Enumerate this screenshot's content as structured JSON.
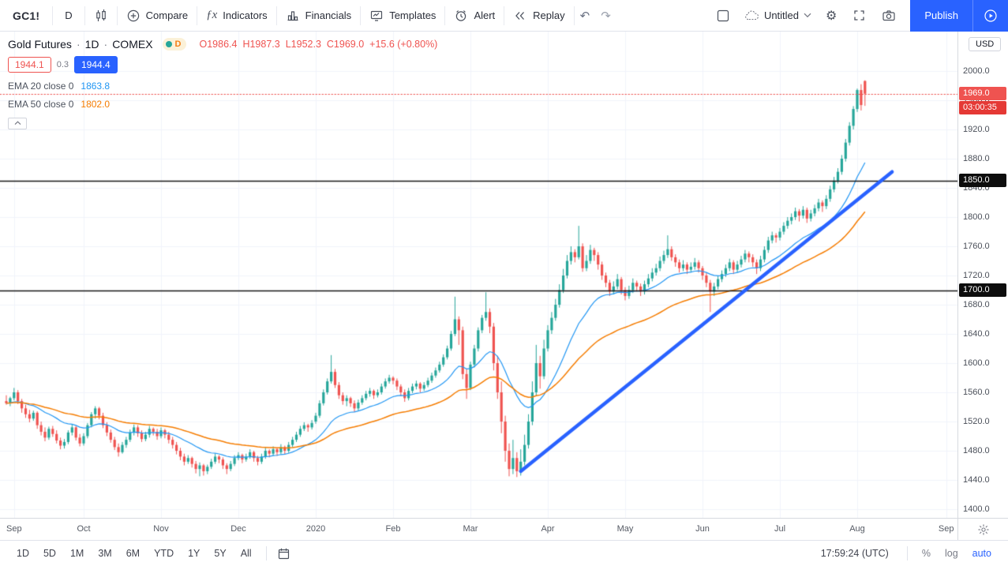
{
  "topbar": {
    "symbol": "GC1!",
    "interval": "D",
    "compare_label": "Compare",
    "indicators_label": "Indicators",
    "financials_label": "Financials",
    "templates_label": "Templates",
    "alert_label": "Alert",
    "replay_label": "Replay",
    "layout_name": "Untitled",
    "publish_label": "Publish"
  },
  "legend": {
    "title": "Gold Futures",
    "sep": "·",
    "interval": "1D",
    "exchange": "COMEX",
    "delay_badge": "D",
    "ohlc": {
      "o": "O1986.4",
      "h": "H1987.3",
      "l": "L1952.3",
      "c": "C1969.0",
      "change": "+15.6 (+0.80%)"
    },
    "bid": "1944.1",
    "spread": "0.3",
    "ask": "1944.4",
    "ema20_label": "EMA 20 close 0",
    "ema20_value": "1863.8",
    "ema50_label": "EMA 50 close 0",
    "ema50_value": "1802.0",
    "collapse_glyph": "⌃"
  },
  "axis": {
    "currency": "USD",
    "last_price": "1969.0",
    "countdown": "03:00:35",
    "upper_level": "1850.0",
    "lower_level": "1700.0"
  },
  "bottom_bar": {
    "ranges": [
      "1D",
      "5D",
      "1M",
      "3M",
      "6M",
      "YTD",
      "1Y",
      "5Y",
      "All"
    ],
    "clock": "17:59:24 (UTC)",
    "percent": "%",
    "log": "log",
    "auto": "auto"
  },
  "colors": {
    "up": "#26a69a",
    "down": "#ef5350",
    "ema20": "#2196f3",
    "ema50": "#f57c00",
    "trendline": "#2962ff",
    "level_line": "#161616",
    "grid": "#f0f3fa",
    "accent": "#2962ff"
  },
  "chart_data": {
    "type": "candlestick",
    "title": "Gold Futures",
    "symbol": "GC1!",
    "interval": "1D",
    "exchange": "COMEX",
    "currency": "USD",
    "ylim": [
      1400,
      2000
    ],
    "y_ticks": [
      2000,
      1960,
      1920,
      1880,
      1840,
      1800,
      1760,
      1720,
      1680,
      1640,
      1600,
      1560,
      1520,
      1480,
      1440,
      1400
    ],
    "x_ticks": [
      {
        "label": "Sep",
        "index": 2
      },
      {
        "label": "Oct",
        "index": 20
      },
      {
        "label": "Nov",
        "index": 40
      },
      {
        "label": "Dec",
        "index": 60
      },
      {
        "label": "2020",
        "index": 80
      },
      {
        "label": "Feb",
        "index": 100
      },
      {
        "label": "Mar",
        "index": 120
      },
      {
        "label": "Apr",
        "index": 140
      },
      {
        "label": "May",
        "index": 160
      },
      {
        "label": "Jun",
        "index": 180
      },
      {
        "label": "Jul",
        "index": 200
      },
      {
        "label": "Aug",
        "index": 220
      },
      {
        "label": "Sep",
        "index": 243
      }
    ],
    "last_ohlc": {
      "open": 1986.4,
      "high": 1987.3,
      "low": 1952.3,
      "close": 1969.0,
      "change": 15.6,
      "change_pct": 0.8
    },
    "last_price": 1969.0,
    "countdown": "03:00:35",
    "horizontal_lines": [
      1850,
      1700
    ],
    "trendline": {
      "from": {
        "index": 133,
        "price": 1452
      },
      "to": {
        "index": 229,
        "price": 1862
      }
    },
    "emas": [
      {
        "period": 20,
        "last": 1863.8
      },
      {
        "period": 50,
        "last": 1802.0
      }
    ],
    "candles": [
      [
        1548,
        1556,
        1543,
        1545
      ],
      [
        1545,
        1554,
        1541,
        1552
      ],
      [
        1552,
        1566,
        1549,
        1560
      ],
      [
        1560,
        1563,
        1544,
        1548
      ],
      [
        1548,
        1551,
        1532,
        1538
      ],
      [
        1538,
        1543,
        1525,
        1530
      ],
      [
        1530,
        1536,
        1519,
        1524
      ],
      [
        1524,
        1535,
        1521,
        1532
      ],
      [
        1532,
        1534,
        1510,
        1515
      ],
      [
        1515,
        1520,
        1501,
        1506
      ],
      [
        1506,
        1512,
        1493,
        1498
      ],
      [
        1498,
        1513,
        1495,
        1510
      ],
      [
        1510,
        1514,
        1499,
        1503
      ],
      [
        1503,
        1508,
        1490,
        1494
      ],
      [
        1494,
        1498,
        1482,
        1487
      ],
      [
        1487,
        1496,
        1483,
        1492
      ],
      [
        1492,
        1508,
        1489,
        1505
      ],
      [
        1505,
        1516,
        1501,
        1512
      ],
      [
        1512,
        1514,
        1494,
        1498
      ],
      [
        1498,
        1503,
        1486,
        1490
      ],
      [
        1490,
        1504,
        1487,
        1500
      ],
      [
        1500,
        1518,
        1497,
        1515
      ],
      [
        1515,
        1533,
        1512,
        1530
      ],
      [
        1530,
        1541,
        1524,
        1538
      ],
      [
        1538,
        1540,
        1523,
        1528
      ],
      [
        1528,
        1532,
        1511,
        1515
      ],
      [
        1515,
        1519,
        1500,
        1505
      ],
      [
        1505,
        1509,
        1491,
        1495
      ],
      [
        1495,
        1499,
        1481,
        1485
      ],
      [
        1485,
        1490,
        1472,
        1478
      ],
      [
        1478,
        1492,
        1476,
        1488
      ],
      [
        1488,
        1499,
        1484,
        1495
      ],
      [
        1495,
        1509,
        1492,
        1505
      ],
      [
        1505,
        1516,
        1501,
        1512
      ],
      [
        1512,
        1515,
        1499,
        1504
      ],
      [
        1504,
        1508,
        1492,
        1496
      ],
      [
        1496,
        1506,
        1493,
        1502
      ],
      [
        1502,
        1514,
        1498,
        1510
      ],
      [
        1510,
        1512,
        1501,
        1506
      ],
      [
        1506,
        1510,
        1495,
        1500
      ],
      [
        1500,
        1512,
        1497,
        1508
      ],
      [
        1508,
        1510,
        1497,
        1502
      ],
      [
        1502,
        1506,
        1490,
        1495
      ],
      [
        1495,
        1499,
        1483,
        1488
      ],
      [
        1488,
        1492,
        1475,
        1480
      ],
      [
        1480,
        1484,
        1467,
        1472
      ],
      [
        1472,
        1476,
        1460,
        1465
      ],
      [
        1465,
        1474,
        1462,
        1470
      ],
      [
        1470,
        1472,
        1457,
        1462
      ],
      [
        1462,
        1466,
        1449,
        1455
      ],
      [
        1455,
        1464,
        1445,
        1460
      ],
      [
        1460,
        1462,
        1446,
        1452
      ],
      [
        1452,
        1461,
        1448,
        1458
      ],
      [
        1458,
        1469,
        1455,
        1465
      ],
      [
        1465,
        1476,
        1462,
        1472
      ],
      [
        1472,
        1474,
        1463,
        1468
      ],
      [
        1468,
        1471,
        1455,
        1460
      ],
      [
        1460,
        1463,
        1448,
        1455
      ],
      [
        1455,
        1466,
        1452,
        1462
      ],
      [
        1462,
        1474,
        1459,
        1470
      ],
      [
        1470,
        1478,
        1467,
        1474
      ],
      [
        1474,
        1476,
        1463,
        1468
      ],
      [
        1468,
        1476,
        1465,
        1472
      ],
      [
        1472,
        1482,
        1469,
        1478
      ],
      [
        1478,
        1480,
        1465,
        1470
      ],
      [
        1470,
        1473,
        1460,
        1465
      ],
      [
        1465,
        1476,
        1462,
        1472
      ],
      [
        1472,
        1484,
        1469,
        1480
      ],
      [
        1480,
        1482,
        1471,
        1476
      ],
      [
        1476,
        1486,
        1473,
        1482
      ],
      [
        1482,
        1484,
        1473,
        1478
      ],
      [
        1478,
        1489,
        1475,
        1485
      ],
      [
        1485,
        1487,
        1475,
        1480
      ],
      [
        1480,
        1492,
        1477,
        1488
      ],
      [
        1488,
        1499,
        1485,
        1495
      ],
      [
        1495,
        1506,
        1492,
        1502
      ],
      [
        1502,
        1514,
        1499,
        1510
      ],
      [
        1510,
        1519,
        1507,
        1515
      ],
      [
        1515,
        1517,
        1506,
        1512
      ],
      [
        1512,
        1522,
        1509,
        1518
      ],
      [
        1520,
        1532,
        1517,
        1528
      ],
      [
        1528,
        1549,
        1525,
        1545
      ],
      [
        1545,
        1564,
        1542,
        1560
      ],
      [
        1560,
        1579,
        1557,
        1575
      ],
      [
        1575,
        1611,
        1572,
        1588
      ],
      [
        1588,
        1592,
        1566,
        1570
      ],
      [
        1570,
        1574,
        1551,
        1556
      ],
      [
        1556,
        1560,
        1543,
        1548
      ],
      [
        1548,
        1556,
        1541,
        1552
      ],
      [
        1552,
        1554,
        1540,
        1545
      ],
      [
        1545,
        1549,
        1533,
        1538
      ],
      [
        1538,
        1550,
        1535,
        1546
      ],
      [
        1546,
        1556,
        1543,
        1552
      ],
      [
        1552,
        1562,
        1549,
        1558
      ],
      [
        1558,
        1566,
        1554,
        1562
      ],
      [
        1562,
        1564,
        1551,
        1556
      ],
      [
        1556,
        1564,
        1553,
        1560
      ],
      [
        1560,
        1572,
        1557,
        1568
      ],
      [
        1568,
        1579,
        1565,
        1575
      ],
      [
        1575,
        1584,
        1572,
        1580
      ],
      [
        1580,
        1582,
        1571,
        1576
      ],
      [
        1576,
        1579,
        1563,
        1568
      ],
      [
        1568,
        1571,
        1555,
        1560
      ],
      [
        1560,
        1564,
        1547,
        1552
      ],
      [
        1552,
        1566,
        1549,
        1562
      ],
      [
        1562,
        1572,
        1559,
        1568
      ],
      [
        1568,
        1576,
        1564,
        1572
      ],
      [
        1572,
        1574,
        1560,
        1565
      ],
      [
        1565,
        1574,
        1562,
        1570
      ],
      [
        1570,
        1580,
        1567,
        1576
      ],
      [
        1576,
        1587,
        1573,
        1583
      ],
      [
        1583,
        1594,
        1580,
        1590
      ],
      [
        1590,
        1602,
        1587,
        1598
      ],
      [
        1598,
        1612,
        1595,
        1608
      ],
      [
        1608,
        1624,
        1605,
        1620
      ],
      [
        1620,
        1644,
        1617,
        1640
      ],
      [
        1640,
        1691,
        1637,
        1660
      ],
      [
        1660,
        1664,
        1625,
        1645
      ],
      [
        1645,
        1650,
        1578,
        1585
      ],
      [
        1585,
        1592,
        1551,
        1566
      ],
      [
        1566,
        1602,
        1563,
        1598
      ],
      [
        1598,
        1625,
        1594,
        1620
      ],
      [
        1620,
        1649,
        1616,
        1645
      ],
      [
        1645,
        1666,
        1641,
        1662
      ],
      [
        1662,
        1697,
        1658,
        1670
      ],
      [
        1670,
        1675,
        1641,
        1650
      ],
      [
        1650,
        1655,
        1590,
        1600
      ],
      [
        1600,
        1610,
        1551,
        1560
      ],
      [
        1560,
        1575,
        1504,
        1520
      ],
      [
        1520,
        1528,
        1465,
        1480
      ],
      [
        1480,
        1490,
        1445,
        1455
      ],
      [
        1455,
        1495,
        1448,
        1470
      ],
      [
        1470,
        1478,
        1444,
        1452
      ],
      [
        1452,
        1482,
        1446,
        1465
      ],
      [
        1465,
        1502,
        1460,
        1488
      ],
      [
        1488,
        1530,
        1483,
        1520
      ],
      [
        1520,
        1575,
        1515,
        1560
      ],
      [
        1560,
        1625,
        1555,
        1600
      ],
      [
        1600,
        1610,
        1565,
        1582
      ],
      [
        1582,
        1632,
        1578,
        1620
      ],
      [
        1620,
        1652,
        1616,
        1645
      ],
      [
        1645,
        1670,
        1640,
        1662
      ],
      [
        1662,
        1688,
        1658,
        1680
      ],
      [
        1680,
        1708,
        1676,
        1700
      ],
      [
        1700,
        1729,
        1696,
        1720
      ],
      [
        1720,
        1748,
        1716,
        1740
      ],
      [
        1740,
        1760,
        1735,
        1752
      ],
      [
        1752,
        1756,
        1738,
        1745
      ],
      [
        1745,
        1788,
        1742,
        1760
      ],
      [
        1760,
        1764,
        1725,
        1730
      ],
      [
        1730,
        1748,
        1726,
        1740
      ],
      [
        1740,
        1762,
        1736,
        1755
      ],
      [
        1755,
        1758,
        1740,
        1748
      ],
      [
        1748,
        1752,
        1728,
        1735
      ],
      [
        1735,
        1739,
        1714,
        1720
      ],
      [
        1720,
        1724,
        1704,
        1710
      ],
      [
        1710,
        1714,
        1692,
        1698
      ],
      [
        1698,
        1712,
        1694,
        1705
      ],
      [
        1705,
        1722,
        1701,
        1715
      ],
      [
        1715,
        1718,
        1694,
        1700
      ],
      [
        1700,
        1704,
        1686,
        1692
      ],
      [
        1692,
        1706,
        1688,
        1700
      ],
      [
        1700,
        1716,
        1696,
        1710
      ],
      [
        1710,
        1713,
        1698,
        1705
      ],
      [
        1705,
        1709,
        1692,
        1698
      ],
      [
        1698,
        1713,
        1694,
        1708
      ],
      [
        1708,
        1722,
        1704,
        1716
      ],
      [
        1716,
        1730,
        1712,
        1724
      ],
      [
        1724,
        1736,
        1720,
        1730
      ],
      [
        1730,
        1746,
        1726,
        1740
      ],
      [
        1740,
        1754,
        1736,
        1748
      ],
      [
        1748,
        1775,
        1744,
        1756
      ],
      [
        1756,
        1760,
        1740,
        1745
      ],
      [
        1745,
        1749,
        1732,
        1738
      ],
      [
        1738,
        1742,
        1724,
        1730
      ],
      [
        1730,
        1741,
        1726,
        1735
      ],
      [
        1735,
        1738,
        1722,
        1728
      ],
      [
        1728,
        1738,
        1724,
        1732
      ],
      [
        1732,
        1744,
        1728,
        1738
      ],
      [
        1738,
        1741,
        1724,
        1730
      ],
      [
        1730,
        1733,
        1714,
        1720
      ],
      [
        1720,
        1724,
        1704,
        1710
      ],
      [
        1710,
        1714,
        1670,
        1698
      ],
      [
        1698,
        1710,
        1692,
        1705
      ],
      [
        1705,
        1720,
        1701,
        1715
      ],
      [
        1715,
        1727,
        1711,
        1722
      ],
      [
        1722,
        1735,
        1718,
        1730
      ],
      [
        1730,
        1743,
        1726,
        1738
      ],
      [
        1738,
        1741,
        1722,
        1728
      ],
      [
        1728,
        1740,
        1724,
        1735
      ],
      [
        1735,
        1747,
        1731,
        1742
      ],
      [
        1742,
        1755,
        1738,
        1750
      ],
      [
        1750,
        1753,
        1738,
        1745
      ],
      [
        1745,
        1749,
        1732,
        1738
      ],
      [
        1738,
        1742,
        1722,
        1730
      ],
      [
        1730,
        1747,
        1726,
        1742
      ],
      [
        1742,
        1760,
        1738,
        1755
      ],
      [
        1755,
        1773,
        1751,
        1768
      ],
      [
        1768,
        1780,
        1764,
        1775
      ],
      [
        1775,
        1778,
        1765,
        1772
      ],
      [
        1772,
        1785,
        1768,
        1780
      ],
      [
        1780,
        1793,
        1776,
        1788
      ],
      [
        1788,
        1800,
        1784,
        1795
      ],
      [
        1795,
        1805,
        1790,
        1800
      ],
      [
        1800,
        1813,
        1796,
        1808
      ],
      [
        1808,
        1811,
        1794,
        1802
      ],
      [
        1802,
        1815,
        1798,
        1810
      ],
      [
        1810,
        1813,
        1792,
        1798
      ],
      [
        1798,
        1810,
        1794,
        1805
      ],
      [
        1805,
        1817,
        1801,
        1812
      ],
      [
        1812,
        1825,
        1808,
        1820
      ],
      [
        1820,
        1823,
        1807,
        1815
      ],
      [
        1815,
        1830,
        1811,
        1825
      ],
      [
        1825,
        1843,
        1821,
        1838
      ],
      [
        1838,
        1855,
        1834,
        1850
      ],
      [
        1850,
        1867,
        1846,
        1862
      ],
      [
        1862,
        1885,
        1858,
        1880
      ],
      [
        1880,
        1907,
        1876,
        1902
      ],
      [
        1902,
        1930,
        1898,
        1925
      ],
      [
        1925,
        1952,
        1920,
        1948
      ],
      [
        1948,
        1976,
        1944,
        1974
      ],
      [
        1974,
        1982,
        1946,
        1953.4
      ],
      [
        1986.4,
        1987.3,
        1952.3,
        1969.0
      ]
    ]
  }
}
